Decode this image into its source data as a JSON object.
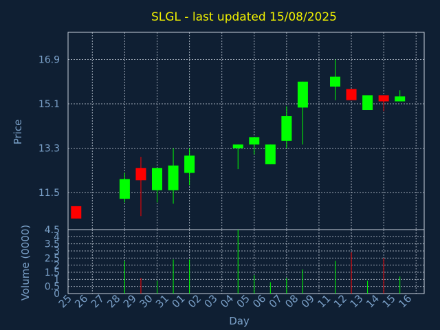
{
  "title": "SLGL - last updated 15/08/2025",
  "chart_data": [
    {
      "type": "candlestick",
      "ylabel": "Price",
      "ylim": [
        10.0,
        18.0
      ],
      "yticks": [
        "11.5",
        "13.3",
        "15.1",
        "16.9"
      ],
      "grid": true,
      "x": [
        "25",
        "26",
        "27",
        "28",
        "29",
        "30",
        "31",
        "01",
        "02",
        "03",
        "04",
        "05",
        "06",
        "07",
        "08",
        "09",
        "11",
        "12",
        "13",
        "14",
        "15",
        "16"
      ],
      "candles": [
        {
          "x": "25",
          "open": 10.95,
          "close": 10.45,
          "high": 10.95,
          "low": 10.45
        },
        {
          "x": "28",
          "open": 11.25,
          "close": 12.05,
          "high": 12.3,
          "low": 11.1,
          "color": "#00ff00"
        },
        {
          "x": "29",
          "open": 12.5,
          "close": 12.0,
          "high": 12.95,
          "low": 10.55,
          "color": "#ff0000"
        },
        {
          "x": "30",
          "open": 11.6,
          "close": 12.5,
          "high": 12.5,
          "low": 11.1,
          "color": "#00ff00"
        },
        {
          "x": "31",
          "open": 11.6,
          "close": 12.6,
          "high": 13.3,
          "low": 11.05,
          "color": "#00ff00"
        },
        {
          "x": "01",
          "open": 12.3,
          "close": 13.0,
          "high": 13.3,
          "low": 11.8,
          "color": "#00ff00"
        },
        {
          "x": "04",
          "open": 13.3,
          "close": 13.45,
          "high": 13.45,
          "low": 12.45,
          "color": "#00ff00"
        },
        {
          "x": "05",
          "open": 13.45,
          "close": 13.75,
          "high": 13.75,
          "low": 13.05,
          "color": "#00ff00"
        },
        {
          "x": "06",
          "open": 12.65,
          "close": 13.45,
          "high": 13.45,
          "low": 12.65,
          "color": "#00ff00"
        },
        {
          "x": "07",
          "open": 13.6,
          "close": 14.6,
          "high": 15.0,
          "low": 13.3,
          "color": "#00ff00"
        },
        {
          "x": "08",
          "open": 14.95,
          "close": 16.0,
          "high": 16.0,
          "low": 13.45,
          "color": "#00ff00"
        },
        {
          "x": "11",
          "open": 15.8,
          "close": 16.2,
          "high": 16.9,
          "low": 15.25,
          "color": "#00ff00"
        },
        {
          "x": "12",
          "open": 15.7,
          "close": 15.25,
          "high": 15.7,
          "low": 15.25,
          "color": "#ff0000"
        },
        {
          "x": "13",
          "open": 14.85,
          "close": 15.45,
          "high": 15.45,
          "low": 14.85,
          "color": "#00ff00"
        },
        {
          "x": "14",
          "open": 15.45,
          "close": 15.2,
          "high": 15.45,
          "low": 14.8,
          "color": "#ff0000"
        },
        {
          "x": "15",
          "open": 15.2,
          "close": 15.4,
          "high": 15.65,
          "low": 15.2,
          "color": "#00ff00"
        }
      ]
    },
    {
      "type": "bar",
      "ylabel": "Volume (0000)",
      "xlabel": "Day",
      "ylim": [
        0,
        4.5
      ],
      "yticks": [
        "0",
        "0.5",
        "1",
        "1.5",
        "2",
        "2.5",
        "3",
        "3.5",
        "4",
        "4.5"
      ],
      "grid": true,
      "bars": [
        {
          "x": "28",
          "value": 2.3,
          "color": "#00ff00"
        },
        {
          "x": "29",
          "value": 1.1,
          "color": "#ff0000"
        },
        {
          "x": "30",
          "value": 0.9,
          "color": "#00ff00"
        },
        {
          "x": "31",
          "value": 2.4,
          "color": "#00ff00"
        },
        {
          "x": "01",
          "value": 2.4,
          "color": "#00ff00"
        },
        {
          "x": "04",
          "value": 4.5,
          "color": "#00ff00"
        },
        {
          "x": "05",
          "value": 1.3,
          "color": "#00ff00"
        },
        {
          "x": "06",
          "value": 0.8,
          "color": "#00ff00"
        },
        {
          "x": "07",
          "value": 1.1,
          "color": "#00ff00"
        },
        {
          "x": "08",
          "value": 1.7,
          "color": "#00ff00"
        },
        {
          "x": "11",
          "value": 2.3,
          "color": "#00ff00"
        },
        {
          "x": "12",
          "value": 2.9,
          "color": "#ff0000"
        },
        {
          "x": "13",
          "value": 0.9,
          "color": "#00ff00"
        },
        {
          "x": "14",
          "value": 2.5,
          "color": "#ff0000"
        },
        {
          "x": "15",
          "value": 1.2,
          "color": "#00ff00"
        }
      ]
    }
  ],
  "colors": {
    "background": "#0f1f33",
    "up": "#00ff00",
    "down": "#ff0000",
    "title": "#f0f000",
    "label": "#7aa0c8"
  }
}
